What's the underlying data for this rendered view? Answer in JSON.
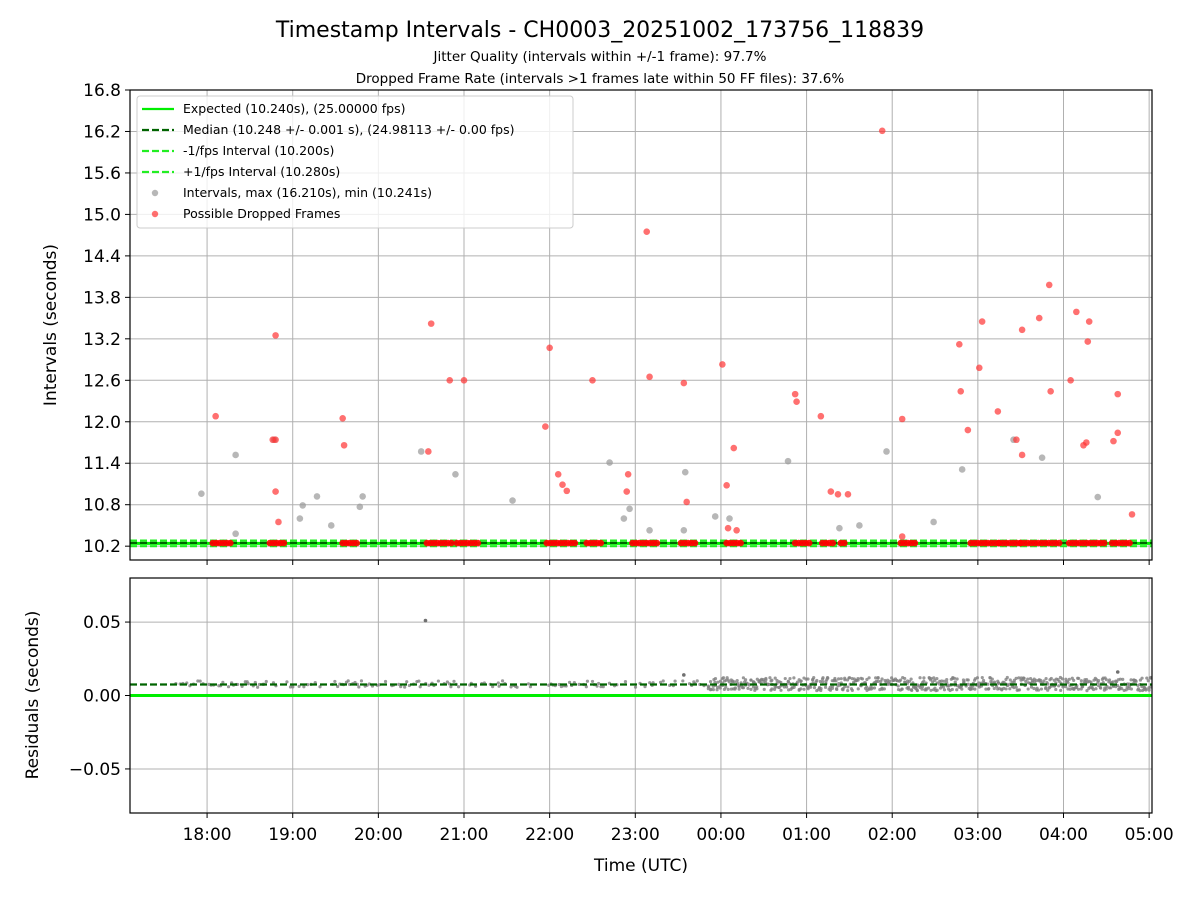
{
  "header": {
    "title": "Timestamp Intervals - CH0003_20251002_173756_118839",
    "subtitle_1": "Jitter Quality (intervals within +/-1 frame): 97.7%",
    "subtitle_2": "Dropped Frame Rate (intervals >1 frames late within 50 FF files): 37.6%"
  },
  "chart_data": [
    {
      "type": "scatter",
      "ylabel": "Intervals (seconds)",
      "xlabel": "",
      "ylim": [
        10.0,
        16.8
      ],
      "xlim": [
        "17:06",
        "05:02"
      ],
      "yticks": [
        "10.2",
        "10.8",
        "11.4",
        "12.0",
        "12.6",
        "13.2",
        "13.8",
        "14.4",
        "15.0",
        "15.6",
        "16.2",
        "16.8"
      ],
      "xticks": [
        "18:00",
        "19:00",
        "20:00",
        "21:00",
        "22:00",
        "23:00",
        "00:00",
        "01:00",
        "02:00",
        "03:00",
        "04:00",
        "05:00"
      ],
      "grid": true,
      "legend_position": "top-left",
      "lines": [
        {
          "name": "Expected (10.240s), (25.00000 fps)",
          "y": 10.24,
          "style": "solid",
          "color": "#00ee00"
        },
        {
          "name": "Median (10.248 +/- 0.001 s), (24.98113 +/- 0.00 fps)",
          "y": 10.248,
          "style": "dashed",
          "color": "#006400"
        },
        {
          "name": "-1/fps Interval (10.200s)",
          "y": 10.2,
          "style": "dashed",
          "color": "#22ee22"
        },
        {
          "name": "+1/fps Interval (10.280s)",
          "y": 10.28,
          "style": "dashed",
          "color": "#22ee22"
        }
      ],
      "series": [
        {
          "name": "Intervals, max (16.210s), min (10.241s)",
          "color": "#999999",
          "points": [
            [
              "17:56",
              10.96
            ],
            [
              "18:20",
              11.52
            ],
            [
              "18:20",
              10.38
            ],
            [
              "18:47",
              11.74
            ],
            [
              "19:05",
              10.6
            ],
            [
              "19:07",
              10.79
            ],
            [
              "19:17",
              10.92
            ],
            [
              "19:27",
              10.5
            ],
            [
              "19:47",
              10.77
            ],
            [
              "19:49",
              10.92
            ],
            [
              "20:30",
              11.57
            ],
            [
              "20:54",
              11.24
            ],
            [
              "21:34",
              10.86
            ],
            [
              "22:42",
              11.41
            ],
            [
              "22:52",
              10.6
            ],
            [
              "22:56",
              10.74
            ],
            [
              "23:10",
              10.43
            ],
            [
              "23:34",
              10.43
            ],
            [
              "23:35",
              11.27
            ],
            [
              "23:56",
              10.63
            ],
            [
              "00:06",
              10.6
            ],
            [
              "00:47",
              11.43
            ],
            [
              "01:23",
              10.46
            ],
            [
              "01:37",
              10.5
            ],
            [
              "01:56",
              11.57
            ],
            [
              "02:29",
              10.55
            ],
            [
              "02:49",
              11.31
            ],
            [
              "03:25",
              11.74
            ],
            [
              "03:45",
              11.48
            ],
            [
              "04:24",
              10.91
            ]
          ]
        },
        {
          "name": "Possible Dropped Frames",
          "color": "#ff3333",
          "points": [
            [
              "18:06",
              12.08
            ],
            [
              "18:46",
              11.74
            ],
            [
              "18:48",
              11.74
            ],
            [
              "18:48",
              13.25
            ],
            [
              "18:48",
              10.99
            ],
            [
              "18:50",
              10.55
            ],
            [
              "19:35",
              12.05
            ],
            [
              "19:36",
              11.66
            ],
            [
              "20:35",
              11.57
            ],
            [
              "20:37",
              13.42
            ],
            [
              "20:50",
              12.6
            ],
            [
              "21:00",
              12.6
            ],
            [
              "21:57",
              11.93
            ],
            [
              "22:00",
              13.07
            ],
            [
              "22:06",
              11.24
            ],
            [
              "22:09",
              11.09
            ],
            [
              "22:12",
              11.0
            ],
            [
              "22:30",
              12.6
            ],
            [
              "22:55",
              11.24
            ],
            [
              "22:54",
              10.99
            ],
            [
              "23:08",
              14.75
            ],
            [
              "23:10",
              12.65
            ],
            [
              "23:34",
              12.56
            ],
            [
              "23:36",
              10.84
            ],
            [
              "00:01",
              12.83
            ],
            [
              "00:04",
              11.08
            ],
            [
              "00:05",
              10.46
            ],
            [
              "00:09",
              11.62
            ],
            [
              "00:11",
              10.43
            ],
            [
              "00:52",
              12.4
            ],
            [
              "00:53",
              12.29
            ],
            [
              "01:10",
              12.08
            ],
            [
              "01:17",
              10.99
            ],
            [
              "01:22",
              10.95
            ],
            [
              "01:29",
              10.95
            ],
            [
              "02:07",
              12.04
            ],
            [
              "02:07",
              10.34
            ],
            [
              "02:47",
              13.12
            ],
            [
              "02:48",
              12.44
            ],
            [
              "02:53",
              11.88
            ],
            [
              "03:01",
              12.78
            ],
            [
              "03:03",
              13.45
            ],
            [
              "03:14",
              12.15
            ],
            [
              "03:27",
              11.74
            ],
            [
              "03:31",
              13.33
            ],
            [
              "03:31",
              11.52
            ],
            [
              "03:43",
              13.5
            ],
            [
              "03:50",
              13.98
            ],
            [
              "03:51",
              12.44
            ],
            [
              "04:05",
              12.6
            ],
            [
              "04:09",
              13.59
            ],
            [
              "04:14",
              11.66
            ],
            [
              "04:16",
              11.7
            ],
            [
              "04:17",
              13.16
            ],
            [
              "04:18",
              13.45
            ],
            [
              "04:35",
              11.72
            ],
            [
              "04:38",
              12.4
            ],
            [
              "04:38",
              11.84
            ],
            [
              "04:48",
              10.66
            ],
            [
              "01:53",
              16.21
            ]
          ]
        }
      ]
    },
    {
      "type": "scatter",
      "ylabel": "Residuals (seconds)",
      "xlabel": "Time (UTC)",
      "ylim": [
        -0.08,
        0.08
      ],
      "xlim": [
        "17:06",
        "05:02"
      ],
      "yticks": [
        "−0.05",
        "0.00",
        "0.05"
      ],
      "xticks": [
        "18:00",
        "19:00",
        "20:00",
        "21:00",
        "22:00",
        "23:00",
        "00:00",
        "01:00",
        "02:00",
        "03:00",
        "04:00",
        "05:00"
      ],
      "grid": true,
      "lines": [
        {
          "name": "Expected",
          "y": 0.0,
          "style": "solid",
          "color": "#00ee00"
        },
        {
          "name": "Median",
          "y": 0.0075,
          "style": "dashed",
          "color": "#006400"
        }
      ],
      "outliers": [
        [
          "20:33",
          0.051
        ],
        [
          "23:34",
          0.014
        ],
        [
          "04:38",
          0.016
        ]
      ]
    }
  ]
}
